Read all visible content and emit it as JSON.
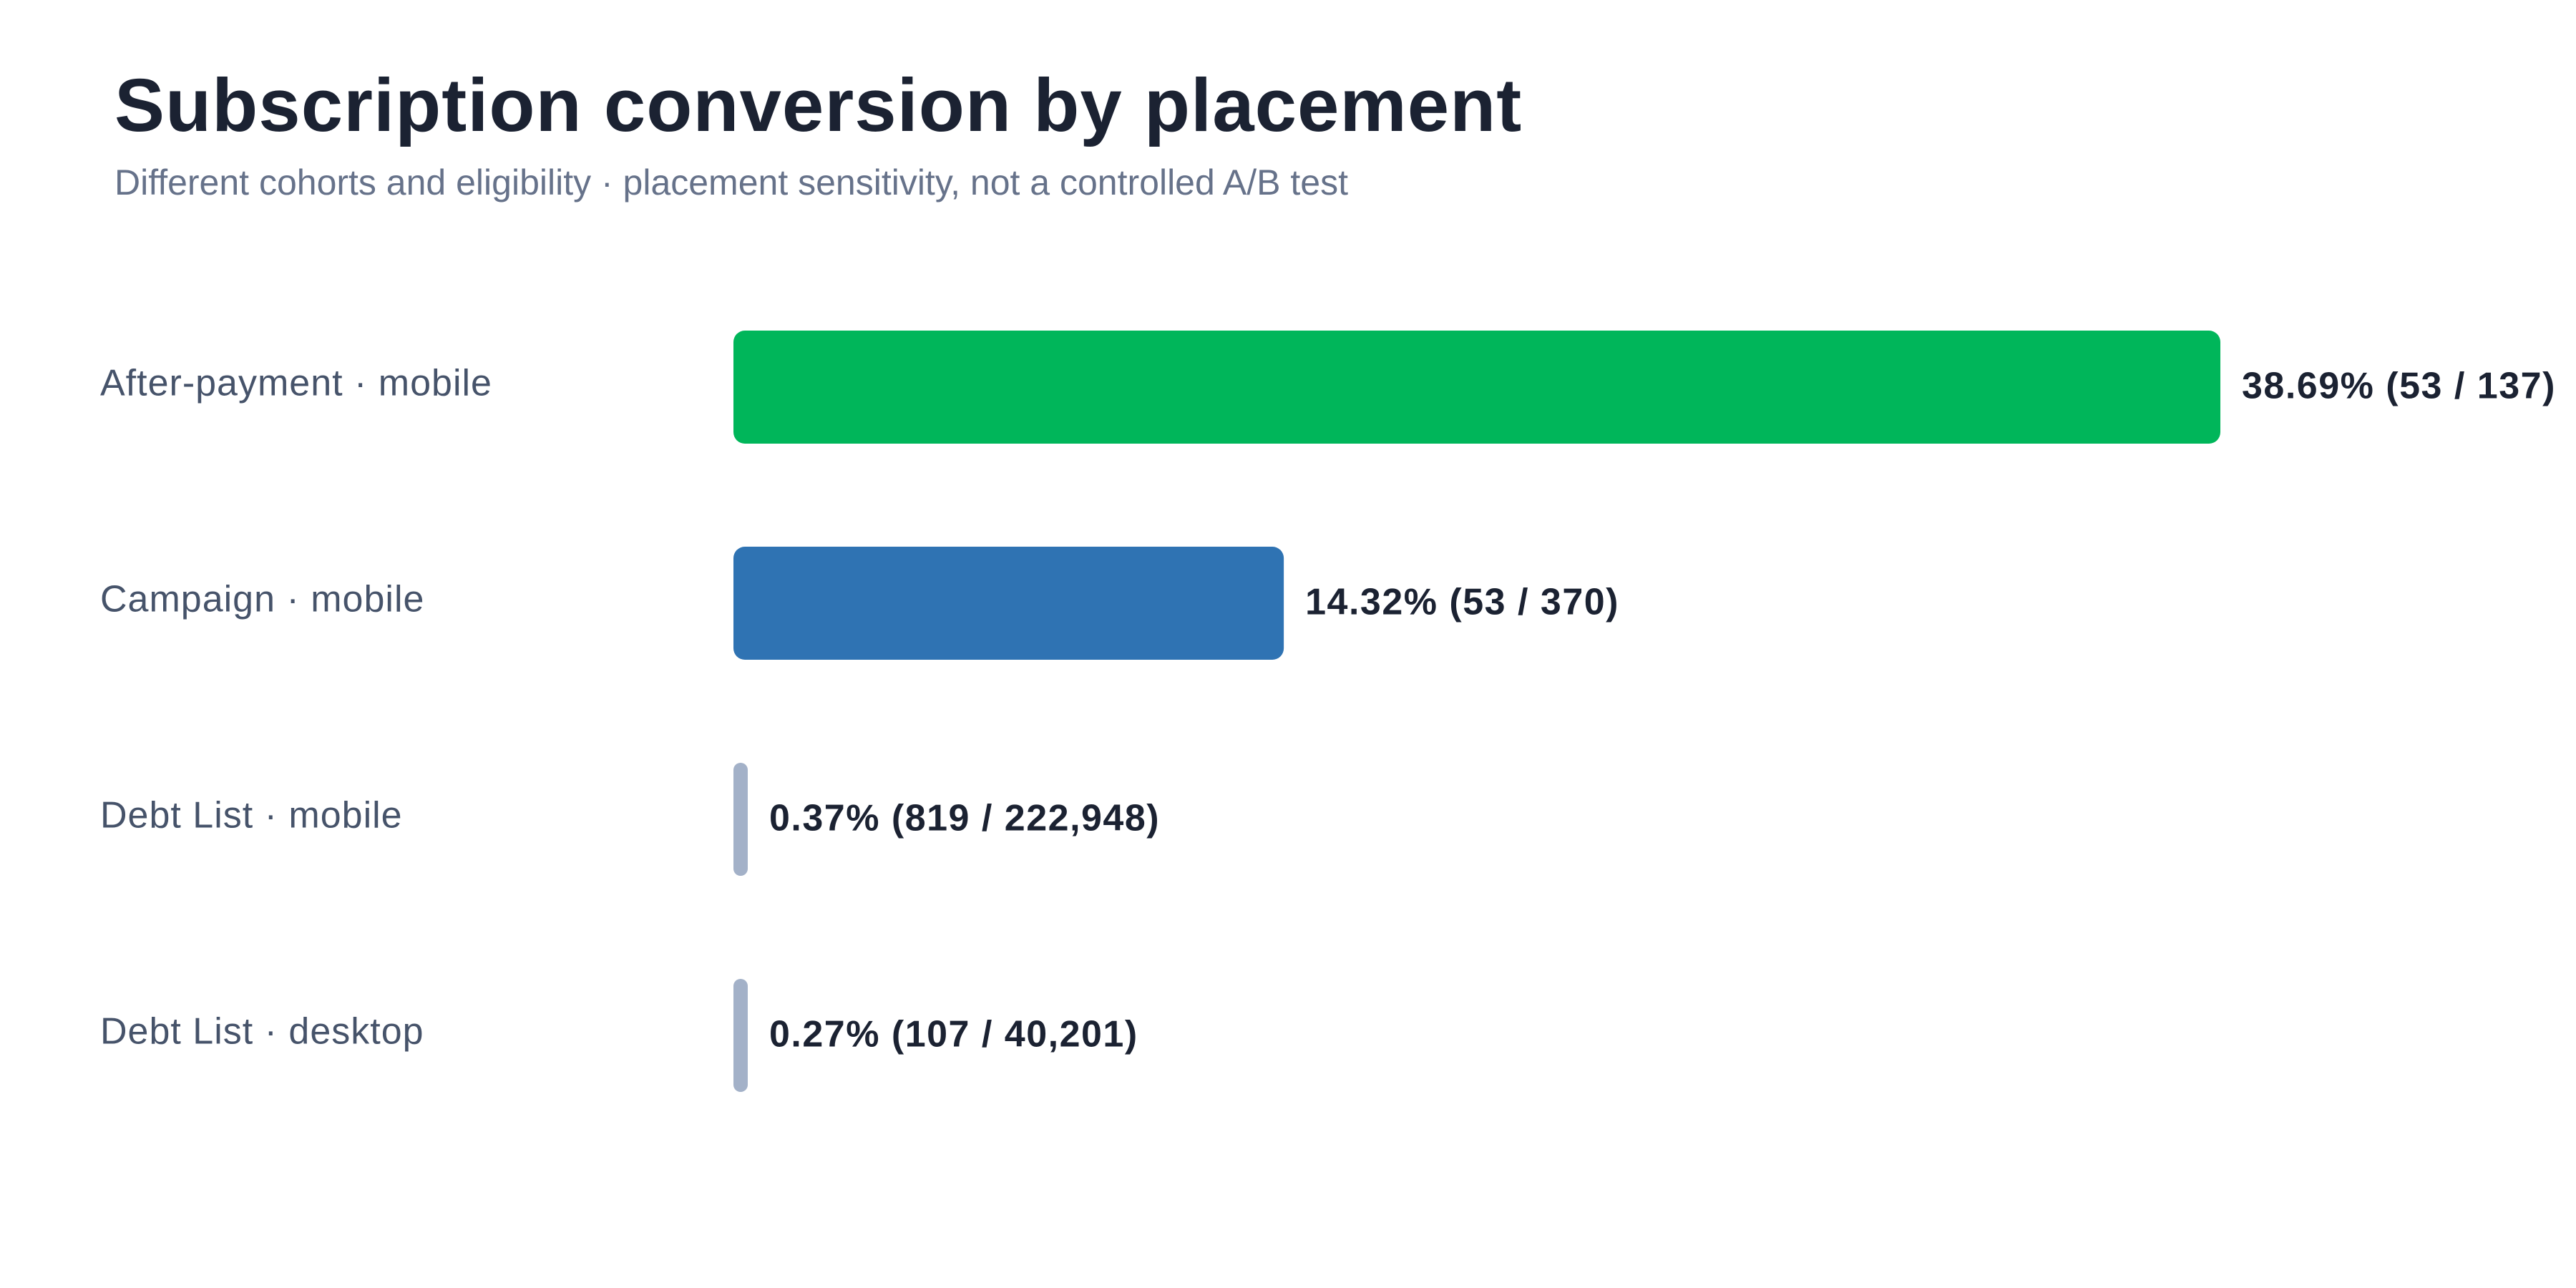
{
  "chart_data": {
    "type": "bar",
    "orientation": "horizontal",
    "title": "Subscription conversion by placement",
    "subtitle": "Different cohorts and eligibility · placement sensitivity, not a controlled A/B test",
    "categories": [
      "After-payment · mobile",
      "Campaign · mobile",
      "Debt List · mobile",
      "Debt List · desktop"
    ],
    "values": [
      38.69,
      14.32,
      0.37,
      0.27
    ],
    "value_labels": [
      "38.69%  (53 / 137)",
      "14.32%  (53 / 370)",
      "0.37%  (819 / 222,948)",
      "0.27%  (107 / 40,201)"
    ],
    "conversions": [
      53,
      53,
      819,
      107
    ],
    "eligible": [
      137,
      370,
      222948,
      40201
    ],
    "colors": [
      "#00b65a",
      "#2f73b3",
      "#a3b1c8",
      "#a3b1c8"
    ],
    "unit": "%",
    "xlim": [
      0,
      38.69
    ],
    "grid": false,
    "legend": "none"
  }
}
